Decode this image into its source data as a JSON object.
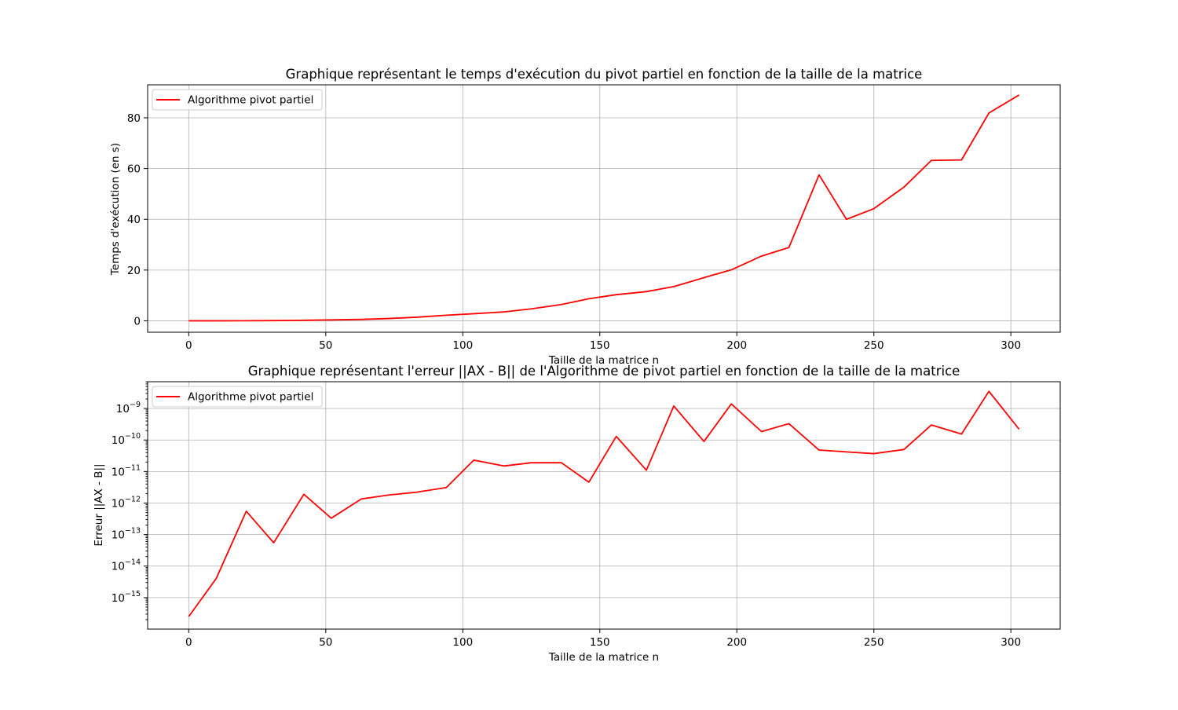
{
  "chart_data": [
    {
      "type": "line",
      "title": "Graphique représentant le temps d'exécution du pivot partiel en fonction de la taille de la matrice",
      "xlabel": "Taille de la matrice n",
      "ylabel": "Temps d'exécution (en s)",
      "xlim": [
        -15,
        318
      ],
      "ylim": [
        -4.5,
        93
      ],
      "xticks": [
        0,
        50,
        100,
        150,
        200,
        250,
        300
      ],
      "yticks": [
        0,
        20,
        40,
        60,
        80
      ],
      "yscale": "linear",
      "grid": true,
      "legend_position": "top-left",
      "series": [
        {
          "name": "Algorithme pivot partiel",
          "color": "#ff0000",
          "x": [
            0,
            10,
            21,
            31,
            42,
            52,
            63,
            73,
            83,
            94,
            104,
            115,
            125,
            136,
            146,
            156,
            167,
            177,
            188,
            198,
            209,
            219,
            230,
            240,
            250,
            261,
            271,
            282,
            292,
            303
          ],
          "y": [
            0.0,
            0.01,
            0.03,
            0.08,
            0.2,
            0.35,
            0.55,
            0.9,
            1.4,
            2.2,
            2.8,
            3.5,
            4.7,
            6.4,
            8.7,
            10.3,
            11.5,
            13.5,
            17.0,
            20.1,
            25.5,
            28.9,
            57.5,
            40.0,
            44.2,
            52.7,
            63.2,
            63.4,
            81.9,
            89.0
          ]
        }
      ]
    },
    {
      "type": "line",
      "title": "Graphique représentant l'erreur ||AX - B|| de l'Algorithme de pivot partiel en fonction de la taille de la matrice",
      "xlabel": "Taille de la matrice n",
      "ylabel": "Erreur ||AX - B||",
      "xlim": [
        -15,
        318
      ],
      "ylim_log10": [
        -16.0,
        -8.15
      ],
      "xticks": [
        0,
        50,
        100,
        150,
        200,
        250,
        300
      ],
      "ytick_exponents": [
        -15,
        -14,
        -13,
        -12,
        -11,
        -10,
        -9
      ],
      "yscale": "log",
      "grid": true,
      "legend_position": "top-left",
      "series": [
        {
          "name": "Algorithme pivot partiel",
          "color": "#ff0000",
          "x": [
            0,
            10,
            21,
            31,
            42,
            52,
            63,
            73,
            83,
            94,
            104,
            115,
            125,
            136,
            146,
            156,
            167,
            177,
            188,
            198,
            209,
            219,
            230,
            240,
            250,
            261,
            271,
            282,
            292,
            303
          ],
          "y": [
            2.5e-16,
            4e-15,
            5.5e-13,
            5.5e-14,
            1.9e-12,
            3.3e-13,
            1.35e-12,
            1.8e-12,
            2.2e-12,
            3.1e-12,
            2.3e-11,
            1.5e-11,
            1.9e-11,
            1.9e-11,
            4.6e-12,
            1.3e-10,
            1.1e-11,
            1.2e-09,
            9e-11,
            1.4e-09,
            1.85e-10,
            3.3e-10,
            4.8e-11,
            4.2e-11,
            3.7e-11,
            5e-11,
            3e-10,
            1.55e-10,
            3.5e-09,
            2.2e-10
          ]
        }
      ]
    }
  ]
}
